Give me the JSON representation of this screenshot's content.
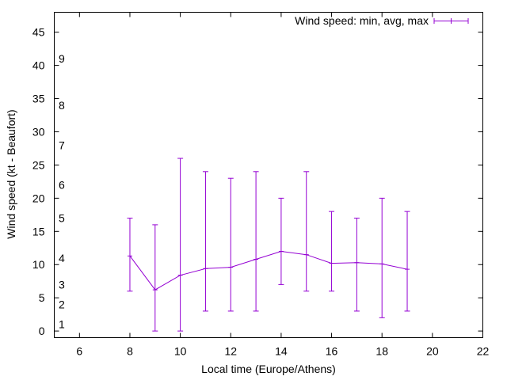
{
  "chart_data": {
    "type": "errorbar-line",
    "title": "",
    "xlabel": "Local time (Europe/Athens)",
    "ylabel": "Wind speed (kt - Beaufort)",
    "xlim": [
      5,
      22
    ],
    "ylim": [
      -1,
      48
    ],
    "x_ticks": [
      6,
      8,
      10,
      12,
      14,
      16,
      18,
      20,
      22
    ],
    "y_ticks": [
      0,
      5,
      10,
      15,
      20,
      25,
      30,
      35,
      40,
      45
    ],
    "beaufort_labels": [
      {
        "label": "1",
        "y": 1
      },
      {
        "label": "2",
        "y": 4
      },
      {
        "label": "3",
        "y": 7
      },
      {
        "label": "4",
        "y": 11
      },
      {
        "label": "5",
        "y": 17
      },
      {
        "label": "6",
        "y": 22
      },
      {
        "label": "7",
        "y": 28
      },
      {
        "label": "8",
        "y": 34
      },
      {
        "label": "9",
        "y": 41
      }
    ],
    "legend": {
      "label": "Wind speed: min, avg, max",
      "position": "top-right"
    },
    "series_color": "#9400d3",
    "series": [
      {
        "name": "Wind speed: min, avg, max",
        "x": [
          8,
          9,
          10,
          11,
          12,
          13,
          14,
          15,
          16,
          17,
          18,
          19
        ],
        "avg": [
          11.3,
          6.2,
          8.4,
          9.4,
          9.6,
          10.8,
          12.0,
          11.5,
          10.2,
          10.3,
          10.1,
          9.3
        ],
        "min": [
          6,
          0,
          0,
          3,
          3,
          3,
          7,
          6,
          6,
          3,
          2,
          3
        ],
        "max": [
          17,
          16,
          26,
          24,
          23,
          24,
          20,
          24,
          18,
          17,
          20,
          18
        ]
      }
    ]
  }
}
